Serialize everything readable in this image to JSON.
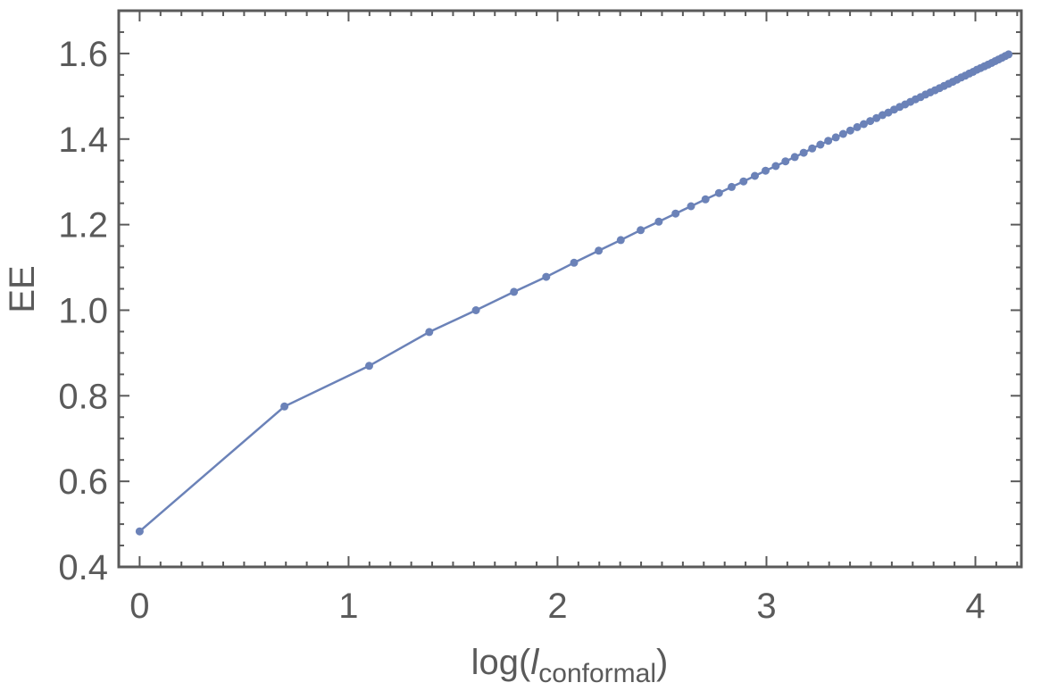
{
  "chart_data": {
    "type": "line",
    "title": "",
    "xlabel": {
      "prefix": "log(",
      "italic": "l",
      "subscript": "conformal",
      "suffix": ")"
    },
    "ylabel": "EE",
    "xlim": [
      -0.1,
      4.22
    ],
    "ylim": [
      0.4,
      1.7
    ],
    "xticks": [
      0,
      1,
      2,
      3,
      4
    ],
    "xtick_labels": [
      "0",
      "1",
      "2",
      "3",
      "4"
    ],
    "yticks": [
      0.4,
      0.6,
      0.8,
      1.0,
      1.2,
      1.4,
      1.6
    ],
    "ytick_labels": [
      "0.4",
      "0.6",
      "0.8",
      "1.0",
      "1.2",
      "1.4",
      "1.6"
    ],
    "grid": false,
    "frame": true,
    "colors": {
      "series": "#6b82b8",
      "axes": "#5a5a5a"
    },
    "series": [
      {
        "x_formula": "log(n), n = 1..64",
        "values": [
          0.483,
          0.775,
          0.87,
          0.949,
          1.0,
          1.043,
          1.078,
          1.111,
          1.139,
          1.164,
          1.187,
          1.207,
          1.226,
          1.243,
          1.259,
          1.274,
          1.288,
          1.301,
          1.314,
          1.326,
          1.337,
          1.348,
          1.358,
          1.368,
          1.378,
          1.387,
          1.396,
          1.404,
          1.412,
          1.42,
          1.428,
          1.435,
          1.442,
          1.449,
          1.456,
          1.462,
          1.469,
          1.475,
          1.481,
          1.487,
          1.493,
          1.498,
          1.504,
          1.509,
          1.514,
          1.519,
          1.524,
          1.529,
          1.534,
          1.539,
          1.544,
          1.548,
          1.553,
          1.557,
          1.562,
          1.566,
          1.57,
          1.574,
          1.578,
          1.582,
          1.586,
          1.59,
          1.594,
          1.598
        ]
      }
    ]
  }
}
